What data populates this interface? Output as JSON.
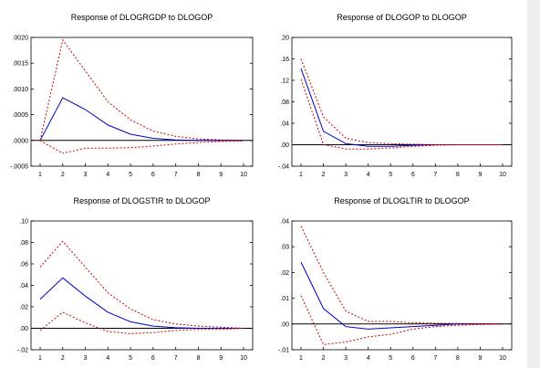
{
  "chart_data": [
    {
      "type": "line",
      "title": "Response of DLOGRGDP to DLOGOP",
      "x": [
        1,
        2,
        3,
        4,
        5,
        6,
        7,
        8,
        9,
        10
      ],
      "xticks": [
        "1",
        "2",
        "3",
        "4",
        "5",
        "6",
        "7",
        "8",
        "9",
        "10"
      ],
      "yticks": [
        ".0020",
        ".0015",
        ".0010",
        ".0005",
        ".0000",
        "-.0005"
      ],
      "ylim": [
        -0.0005,
        0.002
      ],
      "series": [
        {
          "role": "response",
          "color": "#0000cc",
          "style": "solid",
          "values": [
            0.0,
            0.00083,
            0.0006,
            0.0003,
            0.00012,
            4e-05,
            1e-05,
            0.0,
            0.0,
            0.0
          ]
        },
        {
          "role": "upper-band",
          "color": "#cc0000",
          "style": "dashed",
          "values": [
            0.0,
            0.00195,
            0.00135,
            0.00075,
            0.0004,
            0.00018,
            8e-05,
            3e-05,
            1e-05,
            0.0
          ]
        },
        {
          "role": "lower-band",
          "color": "#cc0000",
          "style": "dashed",
          "values": [
            0.0,
            -0.00025,
            -0.00015,
            -0.00015,
            -0.00014,
            -0.00011,
            -7e-05,
            -4e-05,
            -2e-05,
            -1e-05
          ]
        }
      ],
      "zero_line": true
    },
    {
      "type": "line",
      "title": "Response of DLOGOP to DLOGOP",
      "x": [
        1,
        2,
        3,
        4,
        5,
        6,
        7,
        8,
        9,
        10
      ],
      "xticks": [
        "1",
        "2",
        "3",
        "4",
        "5",
        "6",
        "7",
        "8",
        "9",
        "10"
      ],
      "yticks": [
        ".20",
        ".16",
        ".12",
        ".08",
        ".04",
        ".00",
        "-.04"
      ],
      "ylim": [
        -0.04,
        0.2
      ],
      "series": [
        {
          "role": "response",
          "color": "#0000cc",
          "style": "solid",
          "values": [
            0.142,
            0.025,
            0.002,
            -0.003,
            -0.003,
            -0.001,
            0.0,
            0.0,
            0.0,
            0.0
          ]
        },
        {
          "role": "upper-band",
          "color": "#cc0000",
          "style": "dashed",
          "values": [
            0.16,
            0.052,
            0.012,
            0.004,
            0.002,
            0.001,
            0.0,
            0.0,
            0.0,
            0.0
          ]
        },
        {
          "role": "lower-band",
          "color": "#cc0000",
          "style": "dashed",
          "values": [
            0.122,
            0.0,
            -0.008,
            -0.008,
            -0.006,
            -0.003,
            -0.001,
            0.0,
            0.0,
            0.0
          ]
        }
      ],
      "zero_line": true
    },
    {
      "type": "line",
      "title": "Response of DLOGSTIR to DLOGOP",
      "x": [
        1,
        2,
        3,
        4,
        5,
        6,
        7,
        8,
        9,
        10
      ],
      "xticks": [
        "1",
        "2",
        "3",
        "4",
        "5",
        "6",
        "7",
        "8",
        "9",
        "10"
      ],
      "yticks": [
        ".10",
        ".08",
        ".06",
        ".04",
        ".02",
        ".00",
        "-.02"
      ],
      "ylim": [
        -0.02,
        0.1
      ],
      "series": [
        {
          "role": "response",
          "color": "#0000cc",
          "style": "solid",
          "values": [
            0.027,
            0.047,
            0.03,
            0.015,
            0.006,
            0.002,
            0.0005,
            0.0,
            0.0,
            0.0
          ]
        },
        {
          "role": "upper-band",
          "color": "#cc0000",
          "style": "dashed",
          "values": [
            0.057,
            0.081,
            0.057,
            0.033,
            0.018,
            0.008,
            0.004,
            0.002,
            0.001,
            0.0
          ]
        },
        {
          "role": "lower-band",
          "color": "#cc0000",
          "style": "dashed",
          "values": [
            -0.002,
            0.015,
            0.005,
            -0.003,
            -0.005,
            -0.004,
            -0.002,
            -0.001,
            -0.001,
            0.0
          ]
        }
      ],
      "zero_line": true
    },
    {
      "type": "line",
      "title": "Response of DLOGLTIR to DLOGOP",
      "x": [
        1,
        2,
        3,
        4,
        5,
        6,
        7,
        8,
        9,
        10
      ],
      "xticks": [
        "1",
        "2",
        "3",
        "4",
        "5",
        "6",
        "7",
        "8",
        "9",
        "10"
      ],
      "yticks": [
        ".04",
        ".03",
        ".02",
        ".01",
        ".00",
        "-.01"
      ],
      "ylim": [
        -0.01,
        0.04
      ],
      "series": [
        {
          "role": "response",
          "color": "#0000cc",
          "style": "solid",
          "values": [
            0.024,
            0.006,
            -0.001,
            -0.002,
            -0.0015,
            -0.001,
            -0.0005,
            0.0,
            0.0,
            0.0
          ]
        },
        {
          "role": "upper-band",
          "color": "#cc0000",
          "style": "dashed",
          "values": [
            0.038,
            0.02,
            0.005,
            0.001,
            0.001,
            0.0005,
            0.0003,
            0.0002,
            0.0001,
            0.0
          ]
        },
        {
          "role": "lower-band",
          "color": "#cc0000",
          "style": "dashed",
          "values": [
            0.011,
            -0.008,
            -0.007,
            -0.005,
            -0.004,
            -0.002,
            -0.001,
            -0.0005,
            -0.0002,
            0.0
          ]
        }
      ],
      "zero_line": true
    }
  ]
}
